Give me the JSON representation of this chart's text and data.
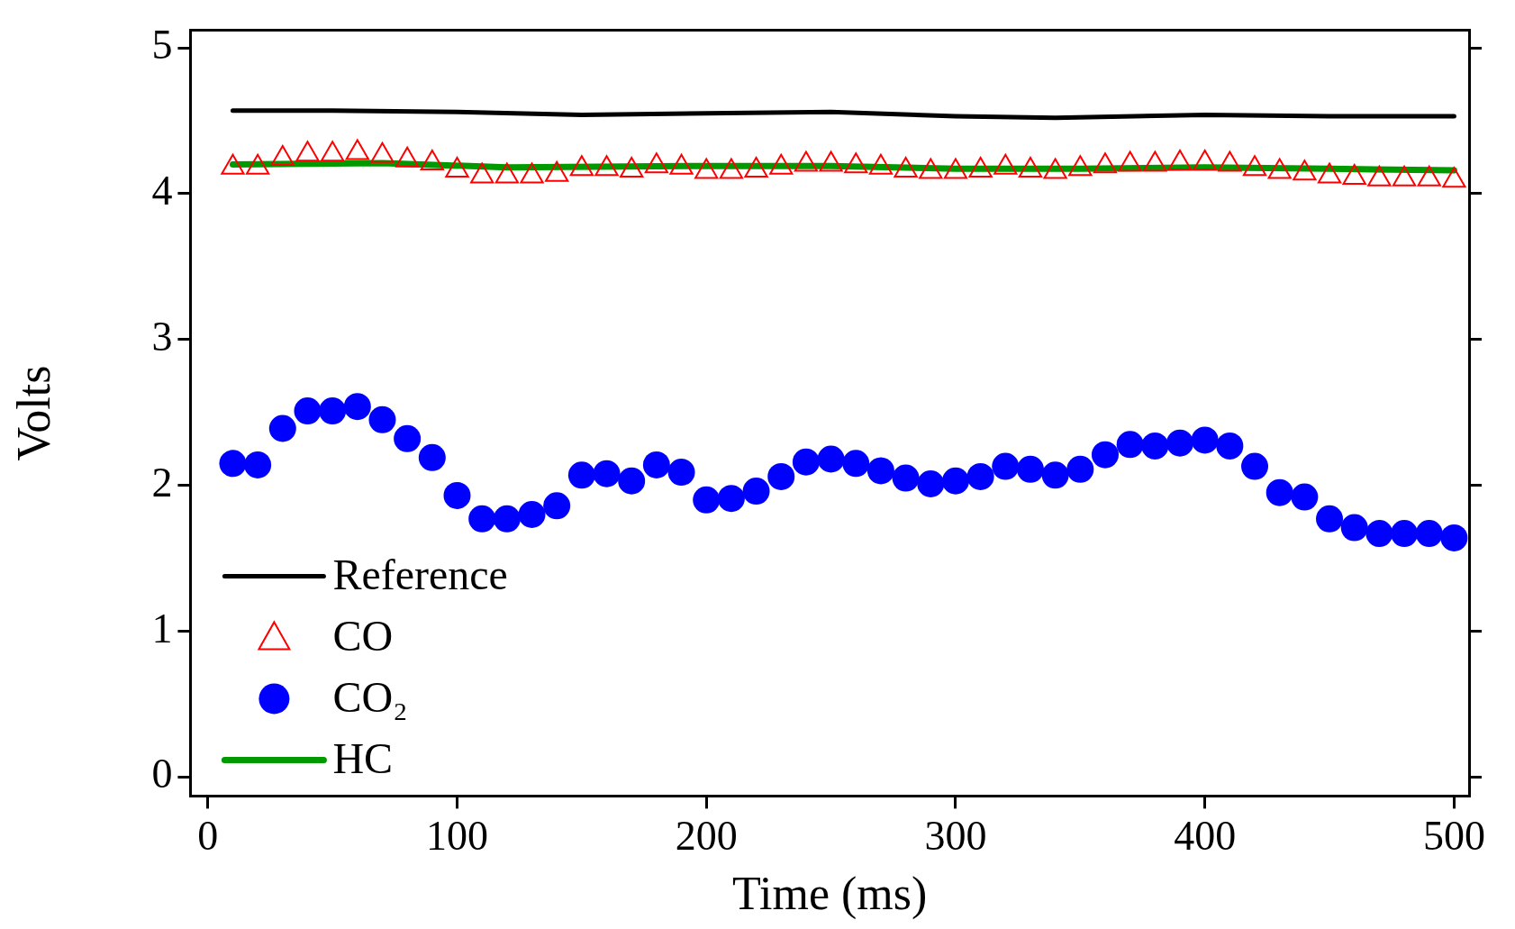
{
  "chart_data": {
    "type": "line",
    "xlabel": "Time (ms)",
    "ylabel": "Volts",
    "xlim": [
      -7,
      506
    ],
    "ylim": [
      -0.13,
      5.12
    ],
    "xticks": [
      0,
      100,
      200,
      300,
      400,
      500
    ],
    "yticks": [
      0,
      1,
      2,
      3,
      4,
      5
    ],
    "grid": false,
    "legend": "bottom left",
    "series": [
      {
        "name": "Reference",
        "type": "line",
        "marker": "none",
        "color": "#000000",
        "x": [
          10,
          50,
          100,
          150,
          200,
          250,
          300,
          340,
          400,
          450,
          500
        ],
        "values": [
          4.57,
          4.57,
          4.56,
          4.54,
          4.55,
          4.56,
          4.53,
          4.52,
          4.54,
          4.53,
          4.53
        ]
      },
      {
        "name": "CO",
        "type": "scatter",
        "marker": "triangle",
        "color": "#ff0000",
        "x": [
          10,
          20,
          30,
          40,
          50,
          60,
          70,
          80,
          90,
          100,
          110,
          120,
          130,
          140,
          150,
          160,
          170,
          180,
          190,
          200,
          210,
          220,
          230,
          240,
          250,
          260,
          270,
          280,
          290,
          300,
          310,
          320,
          330,
          340,
          350,
          360,
          370,
          380,
          390,
          400,
          410,
          420,
          430,
          440,
          450,
          460,
          470,
          480,
          490,
          500
        ],
        "values": [
          4.18,
          4.18,
          4.24,
          4.27,
          4.27,
          4.28,
          4.26,
          4.23,
          4.21,
          4.16,
          4.12,
          4.12,
          4.12,
          4.13,
          4.17,
          4.17,
          4.16,
          4.19,
          4.18,
          4.15,
          4.15,
          4.16,
          4.18,
          4.2,
          4.2,
          4.19,
          4.18,
          4.16,
          4.15,
          4.15,
          4.16,
          4.18,
          4.16,
          4.15,
          4.17,
          4.19,
          4.2,
          4.2,
          4.21,
          4.21,
          4.2,
          4.17,
          4.15,
          4.14,
          4.12,
          4.11,
          4.1,
          4.1,
          4.1,
          4.09
        ]
      },
      {
        "name": "CO₂",
        "type": "scatter",
        "marker": "circle",
        "color": "#0000ff",
        "x": [
          10,
          20,
          30,
          40,
          50,
          60,
          70,
          80,
          90,
          100,
          110,
          120,
          130,
          140,
          150,
          160,
          170,
          180,
          190,
          200,
          210,
          220,
          230,
          240,
          250,
          260,
          270,
          280,
          290,
          300,
          310,
          320,
          330,
          340,
          350,
          360,
          370,
          380,
          390,
          400,
          410,
          420,
          430,
          440,
          450,
          460,
          470,
          480,
          490,
          500
        ],
        "values": [
          2.15,
          2.14,
          2.39,
          2.51,
          2.51,
          2.54,
          2.45,
          2.32,
          2.19,
          1.93,
          1.77,
          1.77,
          1.8,
          1.86,
          2.07,
          2.08,
          2.03,
          2.14,
          2.09,
          1.9,
          1.91,
          1.96,
          2.06,
          2.16,
          2.18,
          2.15,
          2.1,
          2.05,
          2.01,
          2.03,
          2.06,
          2.13,
          2.11,
          2.07,
          2.11,
          2.21,
          2.28,
          2.27,
          2.29,
          2.31,
          2.27,
          2.13,
          1.95,
          1.92,
          1.77,
          1.71,
          1.67,
          1.67,
          1.67,
          1.64
        ]
      },
      {
        "name": "HC",
        "type": "line",
        "marker": "none",
        "color": "#009900",
        "x": [
          10,
          70,
          120,
          200,
          250,
          300,
          350,
          400,
          450,
          500
        ],
        "values": [
          4.2,
          4.21,
          4.18,
          4.19,
          4.19,
          4.17,
          4.17,
          4.18,
          4.17,
          4.16
        ]
      }
    ]
  }
}
